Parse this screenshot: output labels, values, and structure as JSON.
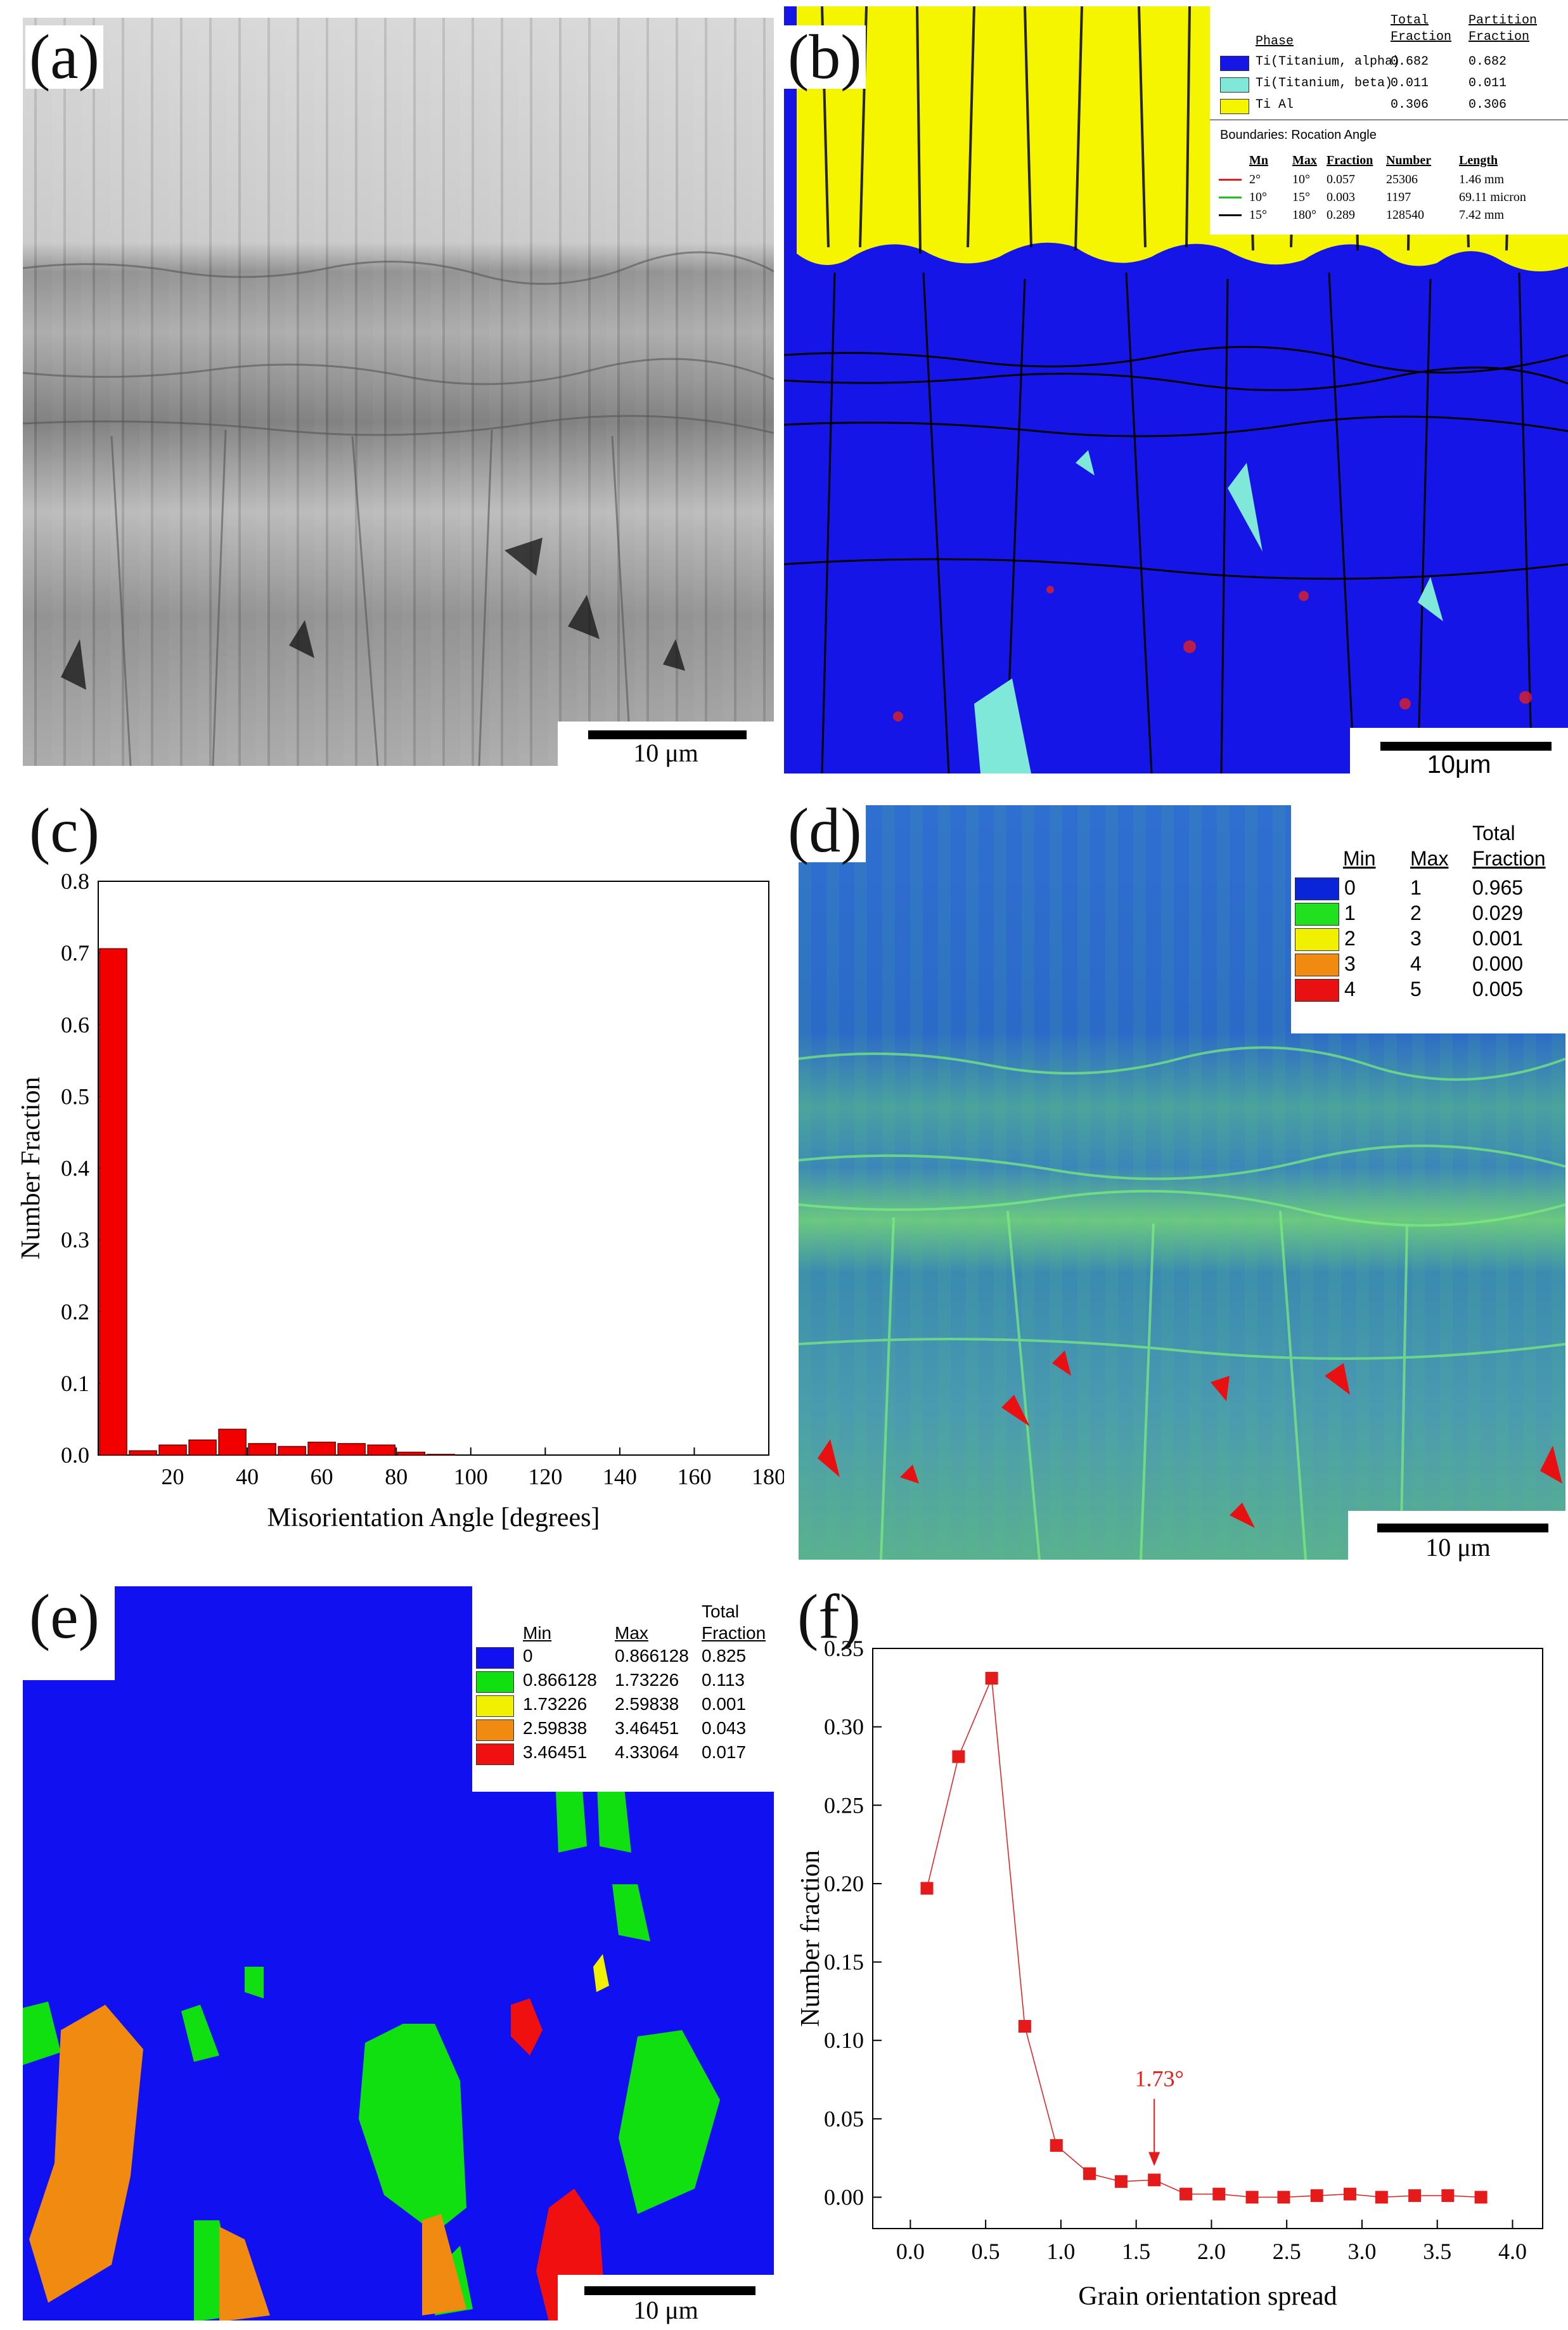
{
  "panels": {
    "a": {
      "label": "(a)",
      "scale": "10 μm"
    },
    "b": {
      "label": "(b)",
      "scale": "10μm",
      "phase_header": {
        "name": "Phase",
        "total": "Total Fraction",
        "partition": "Partition Fraction"
      },
      "phases": [
        {
          "name": "Ti(Titanium, alpha)",
          "total": "0.682",
          "partition": "0.682",
          "color": "#1515e8"
        },
        {
          "name": "Ti(Titanium, beta)",
          "total": "0.011",
          "partition": "0.011",
          "color": "#7fe8d8"
        },
        {
          "name": "Ti Al",
          "total": "0.306",
          "partition": "0.306",
          "color": "#f5f500"
        }
      ],
      "boundaries_title": "Boundaries: Rocation Angle",
      "boundary_header": {
        "min": "Mn",
        "max": "Max",
        "fraction": "Fraction",
        "number": "Number",
        "length": "Length"
      },
      "boundaries": [
        {
          "min": "2°",
          "max": "10°",
          "fraction": "0.057",
          "number": "25306",
          "length": "1.46 mm",
          "color": "#e02020"
        },
        {
          "min": "10°",
          "max": "15°",
          "fraction": "0.003",
          "number": "1197",
          "length": "69.11 micron",
          "color": "#20c020"
        },
        {
          "min": "15°",
          "max": "180°",
          "fraction": "0.289",
          "number": "128540",
          "length": "7.42 mm",
          "color": "#000000"
        }
      ]
    },
    "c": {
      "label": "(c)"
    },
    "d": {
      "label": "(d)",
      "scale": "10 μm",
      "header": {
        "min": "Min",
        "max": "Max",
        "total": "Total",
        "fraction": "Fraction"
      },
      "rows": [
        {
          "min": "0",
          "max": "1",
          "fraction": "0.965",
          "color": "#0a24d8"
        },
        {
          "min": "1",
          "max": "2",
          "fraction": "0.029",
          "color": "#20e020"
        },
        {
          "min": "2",
          "max": "3",
          "fraction": "0.001",
          "color": "#f0f000"
        },
        {
          "min": "3",
          "max": "4",
          "fraction": "0.000",
          "color": "#f08a10"
        },
        {
          "min": "4",
          "max": "5",
          "fraction": "0.005",
          "color": "#e81010"
        }
      ]
    },
    "e": {
      "label": "(e)",
      "scale": "10 μm",
      "header": {
        "min": "Min",
        "max": "Max",
        "total": "Total",
        "fraction": "Fraction"
      },
      "rows": [
        {
          "min": "0",
          "max": "0.866128",
          "fraction": "0.825",
          "color": "#1010f0"
        },
        {
          "min": "0.866128",
          "max": "1.73226",
          "fraction": "0.113",
          "color": "#10e010"
        },
        {
          "min": "1.73226",
          "max": "2.59838",
          "fraction": "0.001",
          "color": "#f0f000"
        },
        {
          "min": "2.59838",
          "max": "3.46451",
          "fraction": "0.043",
          "color": "#f08a10"
        },
        {
          "min": "3.46451",
          "max": "4.33064",
          "fraction": "0.017",
          "color": "#f01010"
        }
      ]
    },
    "f": {
      "label": "(f)"
    }
  },
  "chart_data": [
    {
      "id": "c",
      "type": "bar",
      "xlabel": "Misorientation Angle [degrees]",
      "ylabel": "Number Fraction",
      "xlim": [
        0,
        180
      ],
      "ylim": [
        0,
        0.8
      ],
      "xticks": [
        20,
        40,
        60,
        80,
        100,
        120,
        140,
        160,
        180
      ],
      "yticks": [
        0.0,
        0.1,
        0.2,
        0.3,
        0.4,
        0.5,
        0.6,
        0.7,
        0.8
      ],
      "bin_width": 8,
      "x": [
        4,
        12,
        20,
        28,
        36,
        44,
        52,
        60,
        68,
        76,
        84,
        92
      ],
      "values": [
        0.706,
        0.006,
        0.014,
        0.021,
        0.036,
        0.016,
        0.012,
        0.018,
        0.016,
        0.014,
        0.004,
        0.001
      ],
      "bar_color": "#f20000"
    },
    {
      "id": "f",
      "type": "line",
      "xlabel": "Grain orientation spread",
      "ylabel": "Number fraction",
      "xlim": [
        -0.25,
        4.2
      ],
      "ylim": [
        -0.02,
        0.35
      ],
      "xticks": [
        0.0,
        0.5,
        1.0,
        1.5,
        2.0,
        2.5,
        3.0,
        3.5,
        4.0
      ],
      "yticks": [
        0.0,
        0.05,
        0.1,
        0.15,
        0.2,
        0.25,
        0.3,
        0.35
      ],
      "x": [
        0.11,
        0.32,
        0.54,
        0.76,
        0.97,
        1.19,
        1.4,
        1.62,
        1.83,
        2.05,
        2.27,
        2.48,
        2.7,
        2.92,
        3.13,
        3.35,
        3.57,
        3.79
      ],
      "y": [
        0.197,
        0.281,
        0.331,
        0.109,
        0.033,
        0.015,
        0.01,
        0.011,
        0.002,
        0.002,
        0.0,
        0.0,
        0.001,
        0.002,
        0.0,
        0.001,
        0.001,
        0.0
      ],
      "annotation": {
        "text": "1.73°",
        "x": 1.62,
        "y": 0.011
      },
      "color": "#e51a1a"
    }
  ]
}
